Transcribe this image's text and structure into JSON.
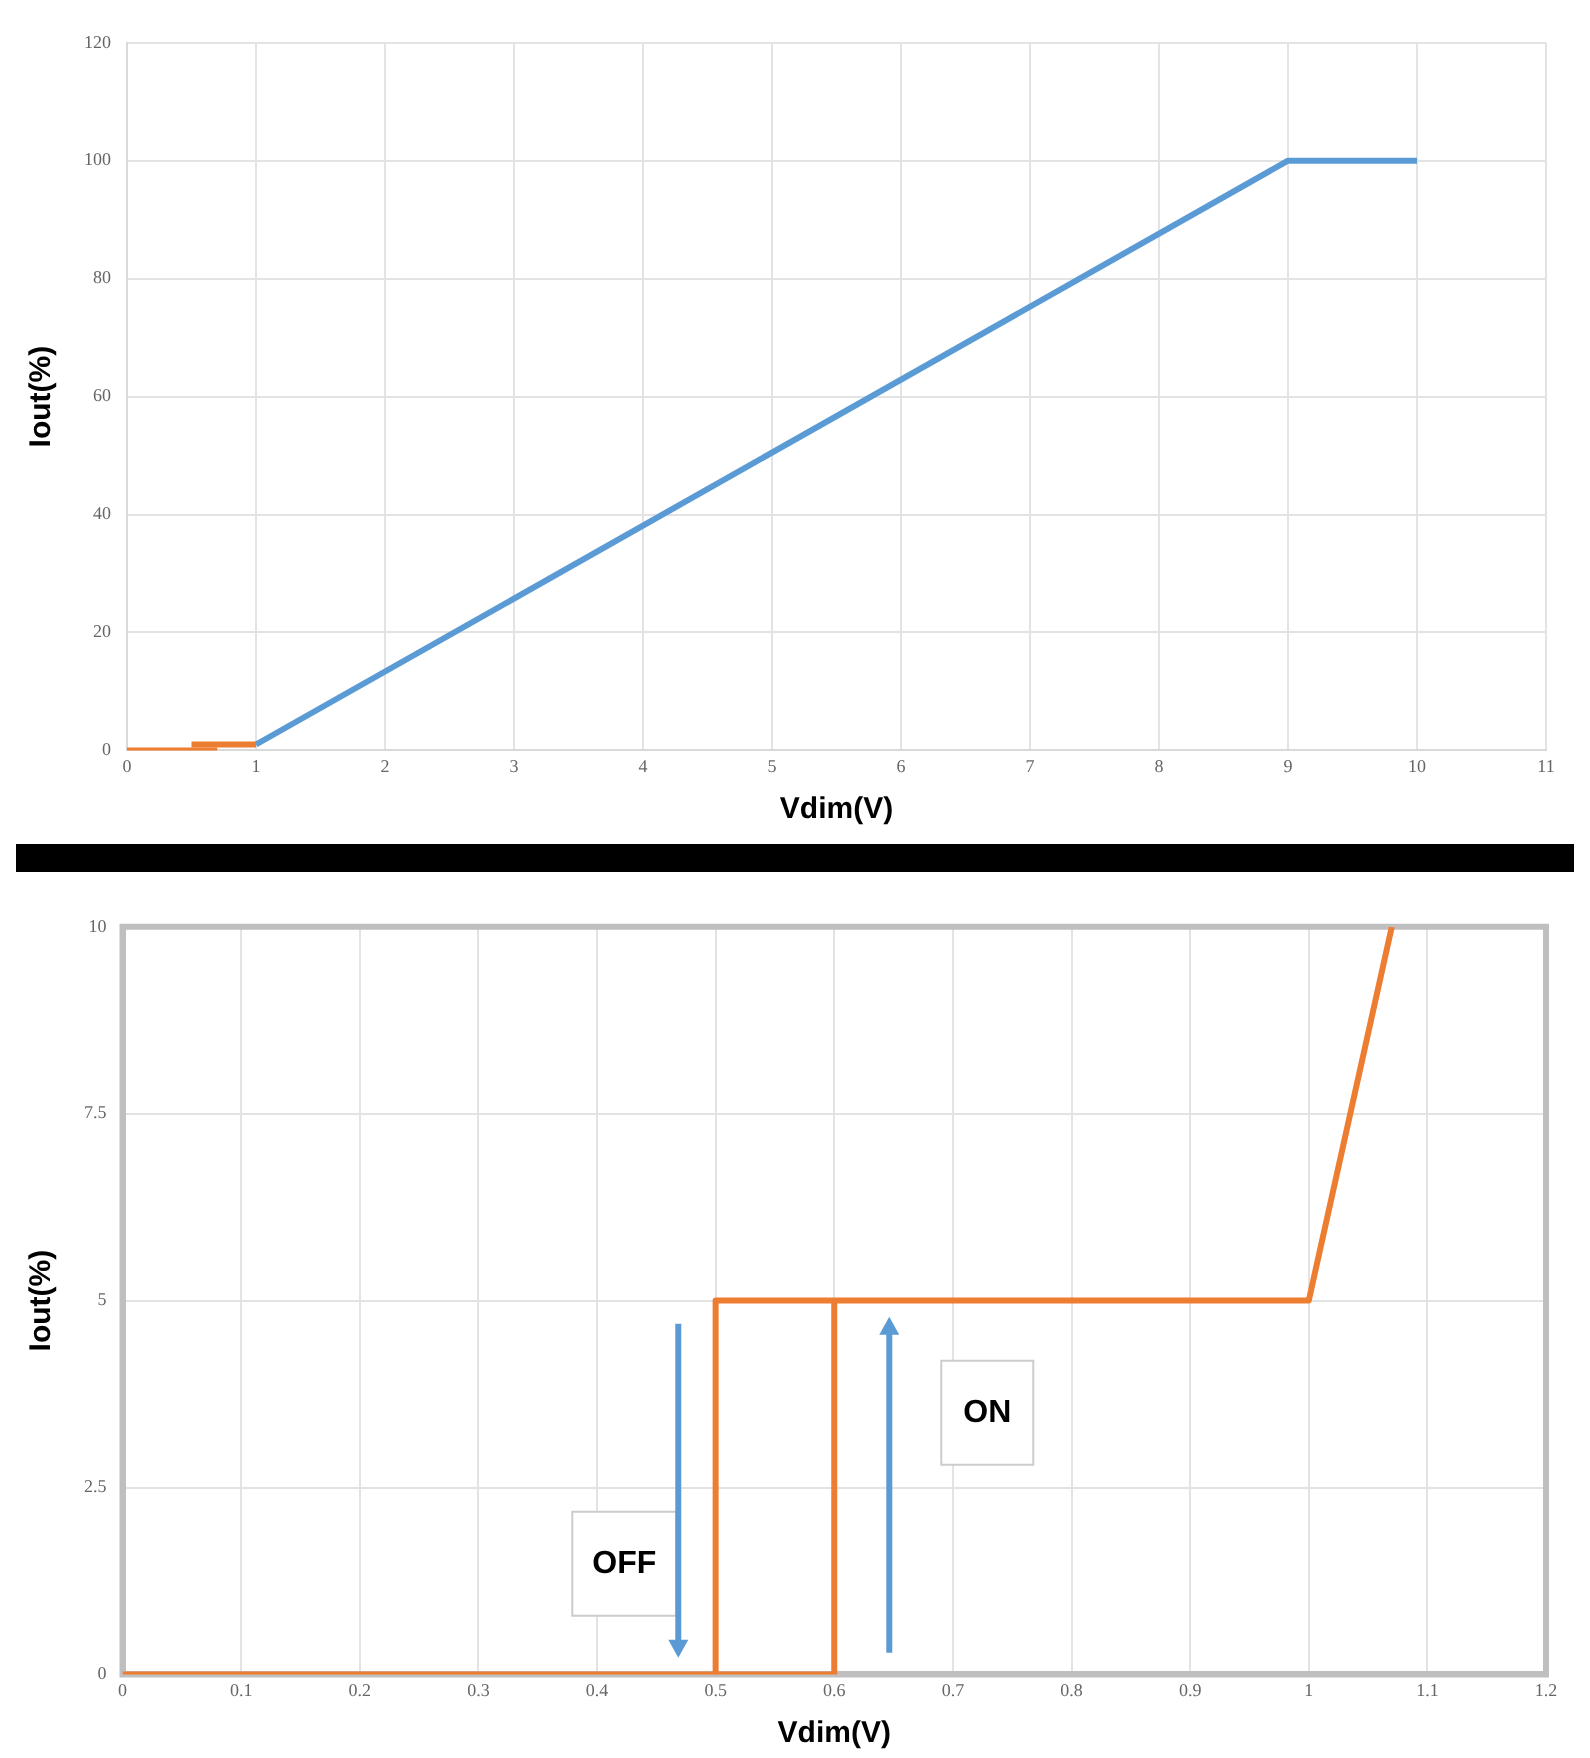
{
  "chart_data": [
    {
      "type": "line",
      "xlabel": "Vdim(V)",
      "ylabel": "Iout(%)",
      "xlim": [
        0,
        11
      ],
      "xticks": [
        0,
        1,
        2,
        3,
        4,
        5,
        6,
        7,
        8,
        9,
        10,
        11
      ],
      "ylim": [
        0,
        120
      ],
      "yticks": [
        0,
        20,
        40,
        60,
        80,
        100,
        120
      ],
      "grid": true,
      "legend": false,
      "marker": "none",
      "series": [
        {
          "color": "#ed7d31",
          "x": [
            0,
            0.7
          ],
          "values": [
            0,
            0
          ]
        },
        {
          "color": "#ed7d31",
          "x": [
            0.5,
            1
          ],
          "values": [
            1,
            1
          ]
        },
        {
          "color": "#5b9bd5",
          "x": [
            1,
            9,
            10
          ],
          "values": [
            1,
            100,
            100
          ]
        }
      ]
    },
    {
      "type": "line",
      "xlabel": "Vdim(V)",
      "ylabel": "Iout(%)",
      "xlim": [
        0,
        1.2
      ],
      "xticks": [
        0,
        0.1,
        0.2,
        0.3,
        0.4,
        0.5,
        0.6,
        0.7,
        0.8,
        0.9,
        1,
        1.1,
        1.2
      ],
      "ylim": [
        0,
        10
      ],
      "yticks": [
        0,
        2.5,
        5,
        7.5,
        10
      ],
      "grid": true,
      "legend": false,
      "marker": "none",
      "annotations": [
        "OFF",
        "ON"
      ],
      "series": [
        {
          "color": "#ed7d31",
          "x": [
            0,
            0.5,
            0.5,
            1,
            1.07
          ],
          "values": [
            0,
            0,
            5,
            5,
            10
          ]
        },
        {
          "color": "#ed7d31",
          "x": [
            0.5,
            0.6,
            0.6
          ],
          "values": [
            0,
            0,
            5
          ]
        }
      ]
    }
  ]
}
